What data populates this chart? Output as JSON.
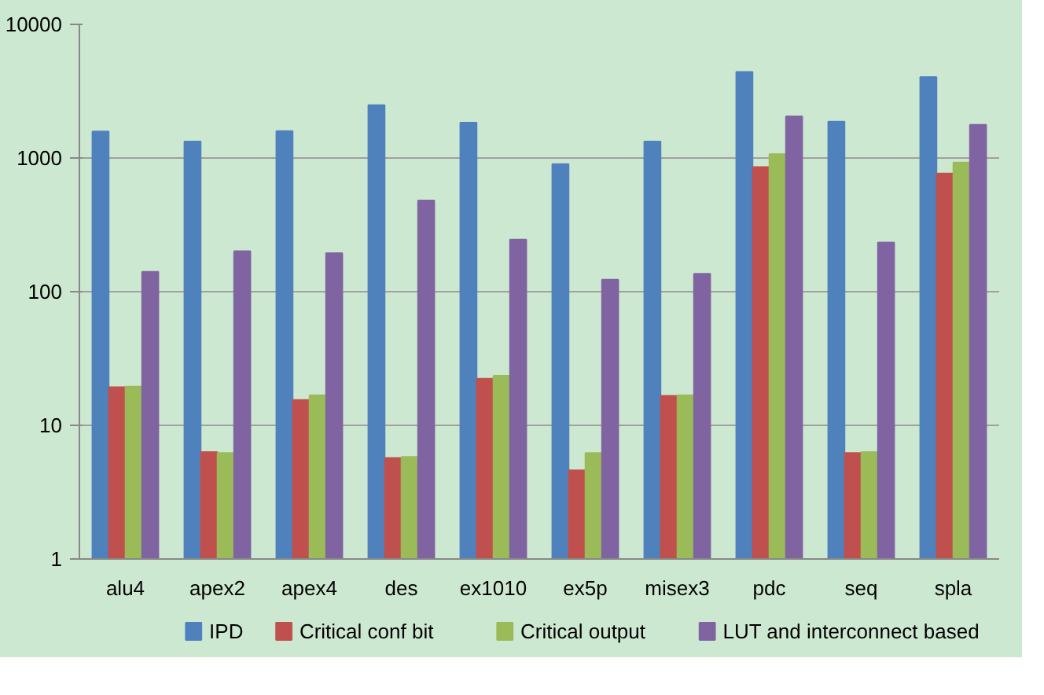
{
  "chart_data": {
    "type": "bar",
    "categories": [
      "alu4",
      "apex2",
      "apex4",
      "des",
      "ex1010",
      "ex5p",
      "misex3",
      "pdc",
      "seq",
      "spla"
    ],
    "series": [
      {
        "name": "IPD",
        "color": "#4f81bd",
        "values": [
          1580,
          1330,
          1590,
          2490,
          1840,
          900,
          1330,
          4400,
          1870,
          4040
        ]
      },
      {
        "name": "Critical conf bit",
        "color": "#c0504d",
        "values": [
          19.3,
          6.3,
          15.5,
          5.7,
          22.3,
          4.6,
          16.6,
          857,
          6.2,
          765
        ]
      },
      {
        "name": "Critical output",
        "color": "#9bbb59",
        "values": [
          19.5,
          6.2,
          16.8,
          5.8,
          23.5,
          6.2,
          16.8,
          1070,
          6.3,
          925
        ]
      },
      {
        "name": "LUT and interconnect based",
        "color": "#8064a2",
        "values": [
          141,
          201,
          194,
          481,
          245,
          123,
          136,
          2050,
          233,
          1770
        ]
      }
    ],
    "log": "y",
    "ylim": [
      1,
      10000
    ],
    "yticks": [
      1,
      10,
      100,
      1000,
      10000
    ],
    "grid": "y",
    "legend": "bottom"
  }
}
